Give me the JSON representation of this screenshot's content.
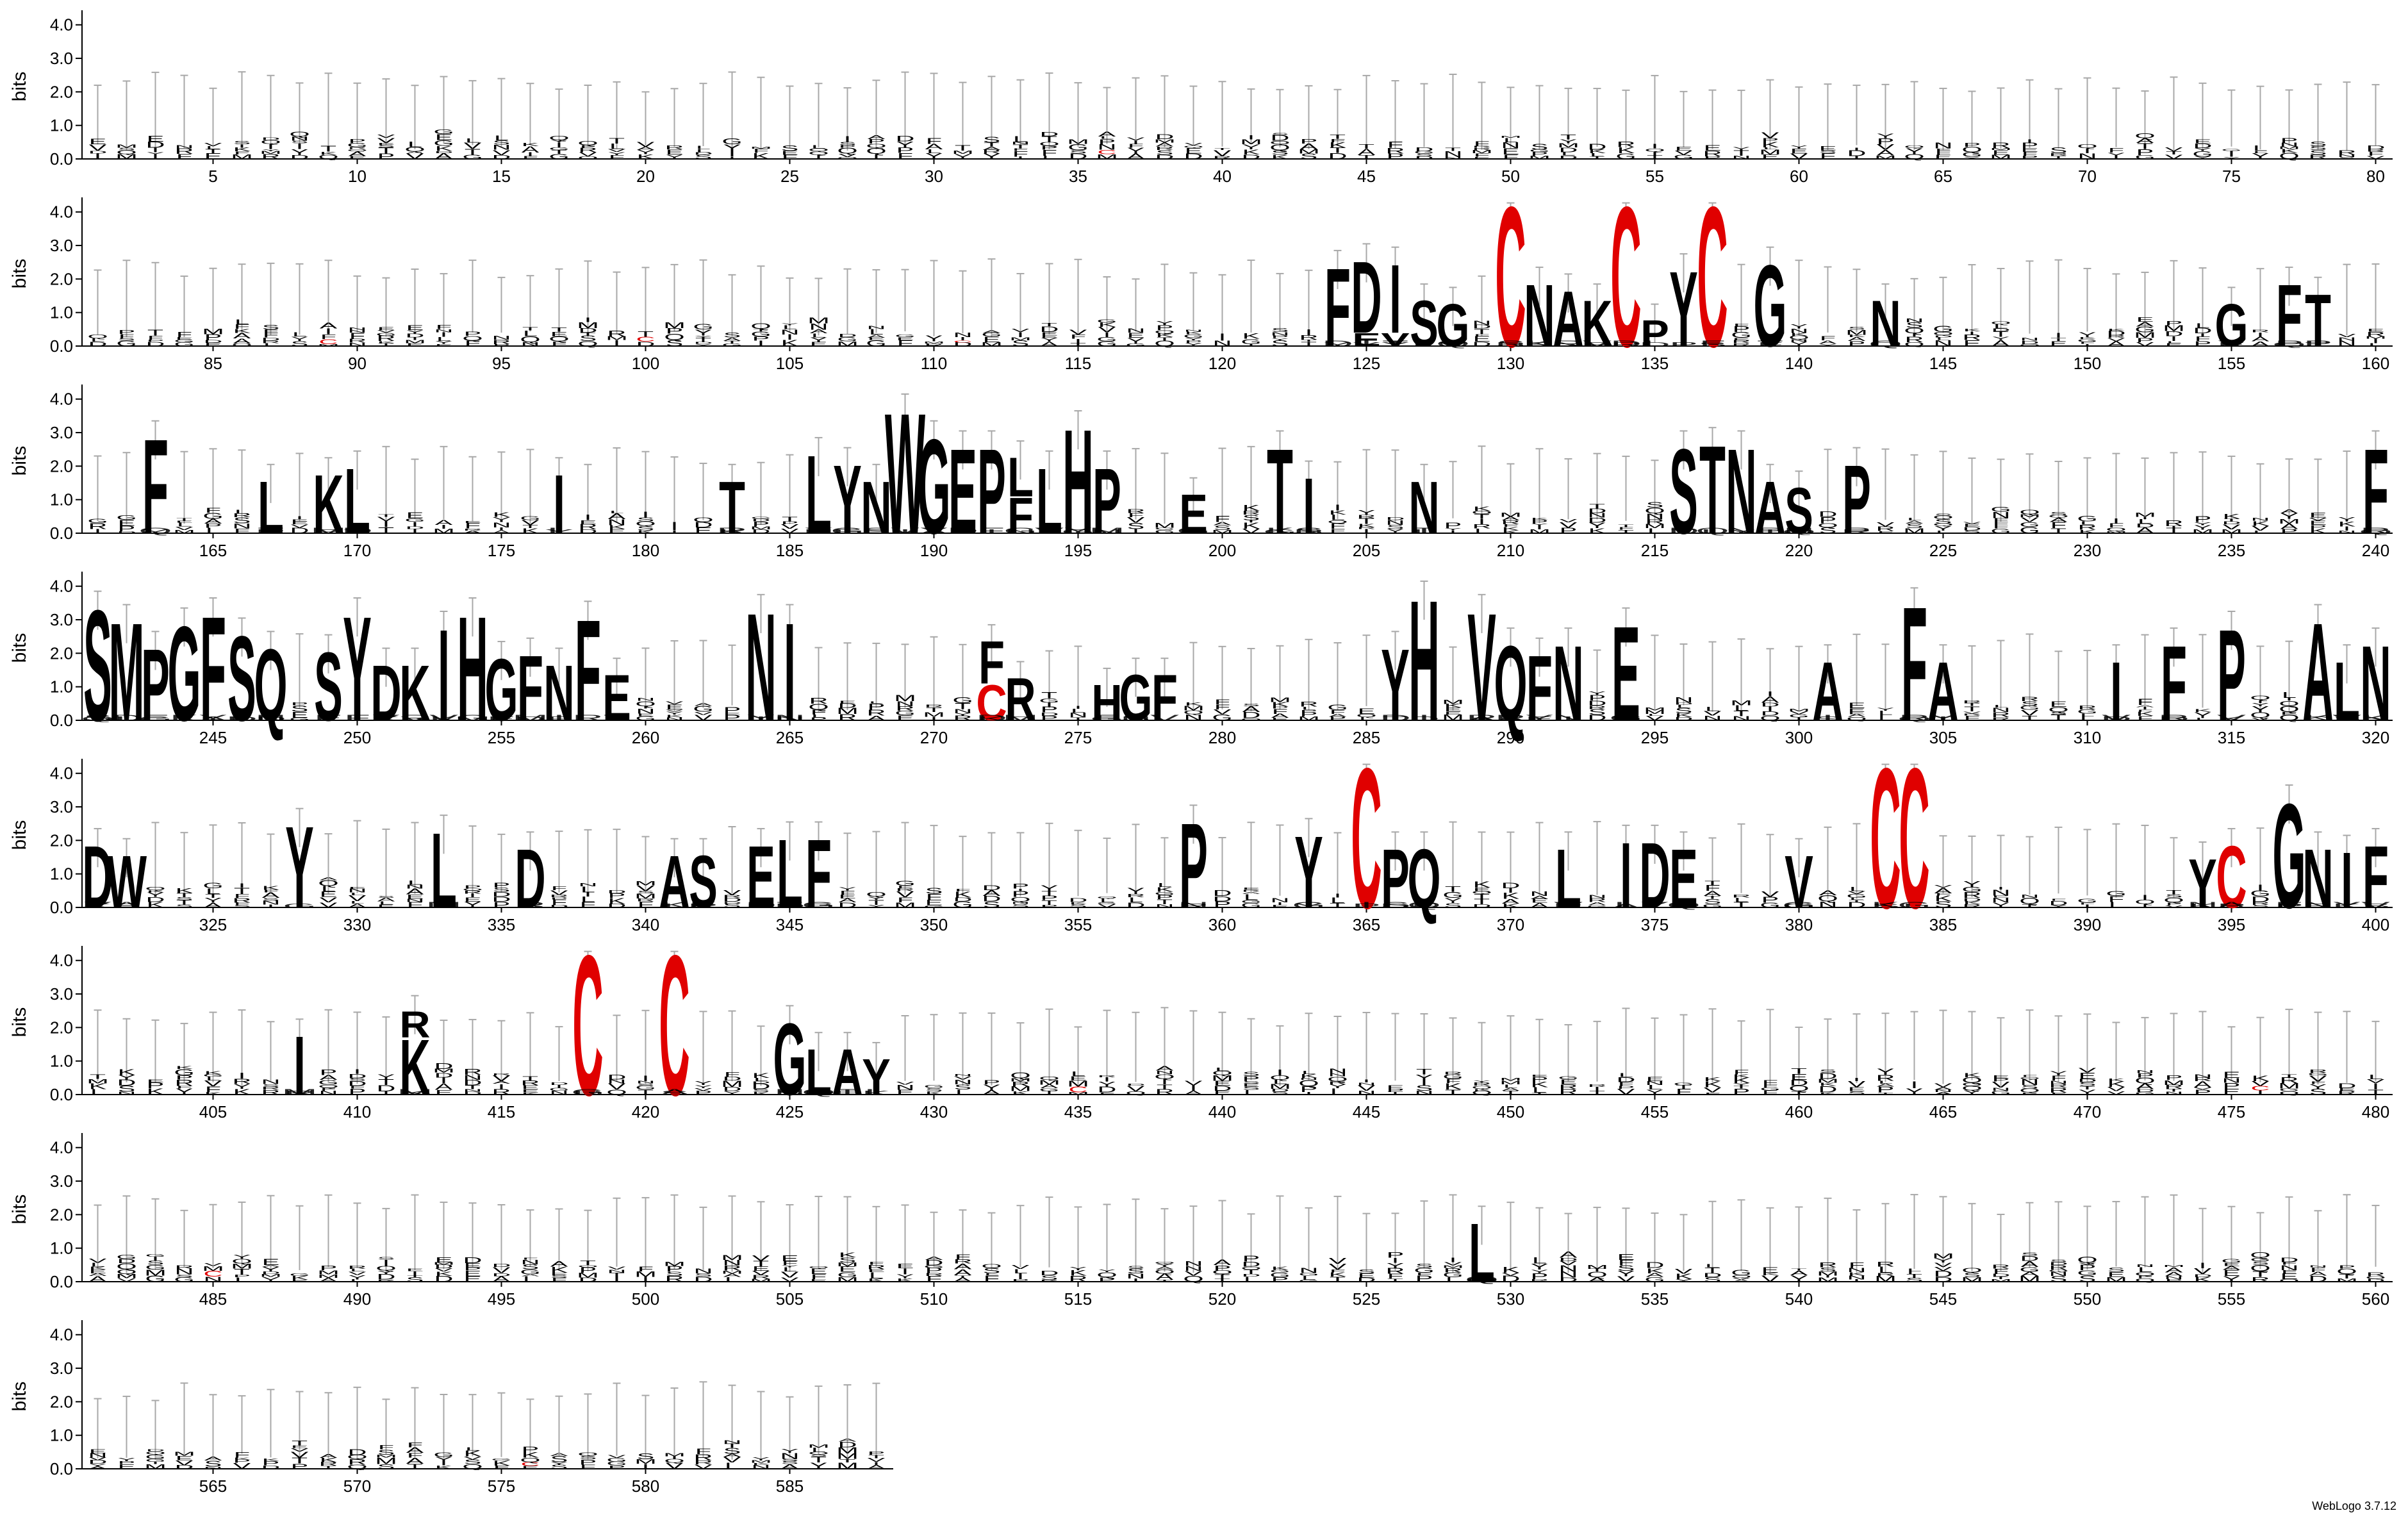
{
  "chart_data": {
    "type": "sequence-logo",
    "ylabel": "bits",
    "ylim": [
      0,
      4.32
    ],
    "yticks": [
      "0.0",
      "1.0",
      "2.0",
      "3.0",
      "4.0"
    ],
    "positions_per_row": 80,
    "total_positions": 588,
    "xtick_every": 5,
    "credit": "WebLogo 3.7.12",
    "colors": {
      "default": "#000000",
      "C": "#e00000",
      "errorbar": "#a8a8a8"
    },
    "logo_columns": [
      {
        "pos": 124,
        "stack": [
          [
            "F",
            2.4
          ]
        ]
      },
      {
        "pos": 125,
        "stack": [
          [
            "E",
            0.4
          ],
          [
            "D",
            2.2
          ]
        ]
      },
      {
        "pos": 126,
        "stack": [
          [
            "V",
            0.4
          ],
          [
            "I",
            2.1
          ]
        ]
      },
      {
        "pos": 127,
        "stack": [
          [
            "S",
            1.4
          ]
        ]
      },
      {
        "pos": 128,
        "stack": [
          [
            "G",
            1.3
          ]
        ]
      },
      {
        "pos": 130,
        "stack": [
          [
            "C",
            4.3
          ]
        ]
      },
      {
        "pos": 131,
        "stack": [
          [
            "N",
            1.9
          ]
        ]
      },
      {
        "pos": 132,
        "stack": [
          [
            "A",
            1.7
          ]
        ]
      },
      {
        "pos": 133,
        "stack": [
          [
            "K",
            1.4
          ]
        ]
      },
      {
        "pos": 134,
        "stack": [
          [
            "C",
            4.3
          ]
        ]
      },
      {
        "pos": 135,
        "stack": [
          [
            "P",
            0.8
          ]
        ]
      },
      {
        "pos": 136,
        "stack": [
          [
            "Y",
            2.3
          ]
        ]
      },
      {
        "pos": 137,
        "stack": [
          [
            "C",
            4.3
          ]
        ]
      },
      {
        "pos": 139,
        "stack": [
          [
            "G",
            2.5
          ]
        ]
      },
      {
        "pos": 143,
        "stack": [
          [
            "N",
            1.4
          ]
        ]
      },
      {
        "pos": 155,
        "stack": [
          [
            "G",
            1.3
          ]
        ]
      },
      {
        "pos": 157,
        "stack": [
          [
            "F",
            1.9
          ]
        ]
      },
      {
        "pos": 158,
        "stack": [
          [
            "T",
            1.6
          ]
        ]
      },
      {
        "pos": 163,
        "stack": [
          [
            "F",
            2.9
          ]
        ]
      },
      {
        "pos": 167,
        "stack": [
          [
            "L",
            1.6
          ]
        ]
      },
      {
        "pos": 169,
        "stack": [
          [
            "K",
            1.8
          ]
        ]
      },
      {
        "pos": 170,
        "stack": [
          [
            "L",
            2.0
          ]
        ]
      },
      {
        "pos": 177,
        "stack": [
          [
            "I",
            1.8
          ]
        ]
      },
      {
        "pos": 183,
        "stack": [
          [
            "T",
            1.6
          ]
        ]
      },
      {
        "pos": 186,
        "stack": [
          [
            "L",
            2.4
          ]
        ]
      },
      {
        "pos": 187,
        "stack": [
          [
            "Y",
            2.1
          ]
        ]
      },
      {
        "pos": 188,
        "stack": [
          [
            "N",
            1.6
          ]
        ]
      },
      {
        "pos": 189,
        "stack": [
          [
            "W",
            3.7
          ]
        ]
      },
      {
        "pos": 190,
        "stack": [
          [
            "G",
            2.9
          ]
        ]
      },
      {
        "pos": 191,
        "stack": [
          [
            "E",
            2.6
          ]
        ]
      },
      {
        "pos": 192,
        "stack": [
          [
            "P",
            2.6
          ]
        ]
      },
      {
        "pos": 193,
        "stack": [
          [
            "F",
            1.1
          ],
          [
            "L",
            1.2
          ]
        ]
      },
      {
        "pos": 194,
        "stack": [
          [
            "L",
            2.0
          ]
        ]
      },
      {
        "pos": 195,
        "stack": [
          [
            "H",
            3.2
          ]
        ]
      },
      {
        "pos": 196,
        "stack": [
          [
            "P",
            2.0
          ]
        ]
      },
      {
        "pos": 199,
        "stack": [
          [
            "E",
            1.2
          ]
        ]
      },
      {
        "pos": 202,
        "stack": [
          [
            "T",
            2.6
          ]
        ]
      },
      {
        "pos": 203,
        "stack": [
          [
            "I",
            1.7
          ]
        ]
      },
      {
        "pos": 207,
        "stack": [
          [
            "N",
            1.6
          ]
        ]
      },
      {
        "pos": 216,
        "stack": [
          [
            "S",
            2.6
          ]
        ]
      },
      {
        "pos": 217,
        "stack": [
          [
            "T",
            2.7
          ]
        ]
      },
      {
        "pos": 218,
        "stack": [
          [
            "N",
            2.6
          ]
        ]
      },
      {
        "pos": 219,
        "stack": [
          [
            "A",
            1.6
          ]
        ]
      },
      {
        "pos": 220,
        "stack": [
          [
            "S",
            1.4
          ]
        ]
      },
      {
        "pos": 222,
        "stack": [
          [
            "P",
            2.1
          ]
        ]
      },
      {
        "pos": 240,
        "stack": [
          [
            "F",
            2.6
          ]
        ]
      },
      {
        "pos": 241,
        "stack": [
          [
            "S",
            3.4
          ]
        ]
      },
      {
        "pos": 242,
        "stack": [
          [
            "M",
            3.0
          ]
        ]
      },
      {
        "pos": 243,
        "stack": [
          [
            "P",
            2.2
          ]
        ]
      },
      {
        "pos": 244,
        "stack": [
          [
            "G",
            2.9
          ]
        ]
      },
      {
        "pos": 245,
        "stack": [
          [
            "F",
            3.2
          ]
        ]
      },
      {
        "pos": 246,
        "stack": [
          [
            "S",
            2.6
          ]
        ]
      },
      {
        "pos": 247,
        "stack": [
          [
            "Q",
            2.2
          ]
        ]
      },
      {
        "pos": 249,
        "stack": [
          [
            "S",
            2.1
          ]
        ]
      },
      {
        "pos": 250,
        "stack": [
          [
            "Y",
            3.2
          ]
        ]
      },
      {
        "pos": 251,
        "stack": [
          [
            "D",
            1.7
          ]
        ]
      },
      {
        "pos": 252,
        "stack": [
          [
            "K",
            1.7
          ]
        ]
      },
      {
        "pos": 253,
        "stack": [
          [
            "I",
            2.8
          ]
        ]
      },
      {
        "pos": 254,
        "stack": [
          [
            "H",
            3.2
          ]
        ]
      },
      {
        "pos": 255,
        "stack": [
          [
            "G",
            1.9
          ]
        ]
      },
      {
        "pos": 256,
        "stack": [
          [
            "F",
            2.0
          ]
        ]
      },
      {
        "pos": 257,
        "stack": [
          [
            "N",
            1.7
          ]
        ]
      },
      {
        "pos": 258,
        "stack": [
          [
            "F",
            3.1
          ]
        ]
      },
      {
        "pos": 259,
        "stack": [
          [
            "E",
            1.4
          ]
        ]
      },
      {
        "pos": 264,
        "stack": [
          [
            "N",
            3.3
          ]
        ]
      },
      {
        "pos": 265,
        "stack": [
          [
            "I",
            3.0
          ]
        ]
      },
      {
        "pos": 272,
        "stack": [
          [
            "C",
            1.1
          ],
          [
            "F",
            1.3
          ]
        ]
      },
      {
        "pos": 273,
        "stack": [
          [
            "R",
            1.3
          ]
        ]
      },
      {
        "pos": 276,
        "stack": [
          [
            "H",
            1.1
          ]
        ]
      },
      {
        "pos": 277,
        "stack": [
          [
            "G",
            1.4
          ]
        ]
      },
      {
        "pos": 278,
        "stack": [
          [
            "F",
            1.4
          ]
        ]
      },
      {
        "pos": 286,
        "stack": [
          [
            "Y",
            2.2
          ]
        ]
      },
      {
        "pos": 287,
        "stack": [
          [
            "H",
            3.7
          ]
        ]
      },
      {
        "pos": 289,
        "stack": [
          [
            "V",
            3.3
          ]
        ]
      },
      {
        "pos": 290,
        "stack": [
          [
            "Q",
            2.3
          ]
        ]
      },
      {
        "pos": 291,
        "stack": [
          [
            "F",
            2.0
          ]
        ]
      },
      {
        "pos": 292,
        "stack": [
          [
            "N",
            2.3
          ]
        ]
      },
      {
        "pos": 294,
        "stack": [
          [
            "E",
            2.9
          ]
        ]
      },
      {
        "pos": 301,
        "stack": [
          [
            "A",
            1.8
          ]
        ]
      },
      {
        "pos": 304,
        "stack": [
          [
            "F",
            3.5
          ]
        ]
      },
      {
        "pos": 305,
        "stack": [
          [
            "A",
            1.8
          ]
        ]
      },
      {
        "pos": 311,
        "stack": [
          [
            "I",
            1.8
          ]
        ]
      },
      {
        "pos": 313,
        "stack": [
          [
            "F",
            2.3
          ]
        ]
      },
      {
        "pos": 315,
        "stack": [
          [
            "P",
            2.8
          ]
        ]
      },
      {
        "pos": 318,
        "stack": [
          [
            "A",
            3.0
          ]
        ]
      },
      {
        "pos": 319,
        "stack": [
          [
            "L",
            1.8
          ]
        ]
      },
      {
        "pos": 320,
        "stack": [
          [
            "N",
            2.3
          ]
        ]
      },
      {
        "pos": 321,
        "stack": [
          [
            "D",
            1.9
          ]
        ]
      },
      {
        "pos": 322,
        "stack": [
          [
            "W",
            1.6
          ]
        ]
      },
      {
        "pos": 328,
        "stack": [
          [
            "Y",
            2.5
          ]
        ]
      },
      {
        "pos": 333,
        "stack": [
          [
            "L",
            2.3
          ]
        ]
      },
      {
        "pos": 336,
        "stack": [
          [
            "D",
            1.8
          ]
        ]
      },
      {
        "pos": 341,
        "stack": [
          [
            "A",
            1.6
          ]
        ]
      },
      {
        "pos": 342,
        "stack": [
          [
            "S",
            1.6
          ]
        ]
      },
      {
        "pos": 344,
        "stack": [
          [
            "E",
            1.9
          ]
        ]
      },
      {
        "pos": 345,
        "stack": [
          [
            "L",
            2.1
          ]
        ]
      },
      {
        "pos": 346,
        "stack": [
          [
            "F",
            2.1
          ]
        ]
      },
      {
        "pos": 359,
        "stack": [
          [
            "P",
            2.6
          ]
        ]
      },
      {
        "pos": 363,
        "stack": [
          [
            "Y",
            2.2
          ]
        ]
      },
      {
        "pos": 365,
        "stack": [
          [
            "C",
            4.3
          ]
        ]
      },
      {
        "pos": 366,
        "stack": [
          [
            "P",
            1.8
          ]
        ]
      },
      {
        "pos": 367,
        "stack": [
          [
            "Q",
            1.8
          ]
        ]
      },
      {
        "pos": 372,
        "stack": [
          [
            "L",
            1.8
          ]
        ]
      },
      {
        "pos": 374,
        "stack": [
          [
            "I",
            2.0
          ]
        ]
      },
      {
        "pos": 375,
        "stack": [
          [
            "D",
            2.0
          ]
        ]
      },
      {
        "pos": 376,
        "stack": [
          [
            "E",
            1.8
          ]
        ]
      },
      {
        "pos": 380,
        "stack": [
          [
            "V",
            1.6
          ]
        ]
      },
      {
        "pos": 383,
        "stack": [
          [
            "C",
            4.3
          ]
        ]
      },
      {
        "pos": 384,
        "stack": [
          [
            "C",
            4.3
          ]
        ]
      },
      {
        "pos": 394,
        "stack": [
          [
            "Y",
            1.5
          ]
        ]
      },
      {
        "pos": 395,
        "stack": [
          [
            "C",
            1.9
          ]
        ]
      },
      {
        "pos": 397,
        "stack": [
          [
            "G",
            3.2
          ]
        ]
      },
      {
        "pos": 398,
        "stack": [
          [
            "N",
            1.8
          ]
        ]
      },
      {
        "pos": 399,
        "stack": [
          [
            "I",
            1.7
          ]
        ]
      },
      {
        "pos": 400,
        "stack": [
          [
            "F",
            1.9
          ]
        ]
      },
      {
        "pos": 408,
        "stack": [
          [
            "I",
            1.8
          ]
        ]
      },
      {
        "pos": 412,
        "stack": [
          [
            "K",
            1.7
          ],
          [
            "R",
            0.8
          ]
        ]
      },
      {
        "pos": 418,
        "stack": [
          [
            "C",
            4.3
          ]
        ]
      },
      {
        "pos": 421,
        "stack": [
          [
            "C",
            4.3
          ]
        ]
      },
      {
        "pos": 425,
        "stack": [
          [
            "G",
            2.2
          ]
        ]
      },
      {
        "pos": 426,
        "stack": [
          [
            "L",
            1.4
          ]
        ]
      },
      {
        "pos": 427,
        "stack": [
          [
            "A",
            1.4
          ]
        ]
      },
      {
        "pos": 428,
        "stack": [
          [
            "Y",
            1.1
          ]
        ]
      },
      {
        "pos": 529,
        "stack": [
          [
            "L",
            1.8
          ]
        ]
      }
    ],
    "pixel_columns": [
      {
        "pos": 36,
        "color": "#e00000"
      },
      {
        "pos": 89,
        "color": "#e00000"
      },
      {
        "pos": 100,
        "color": "#e00000"
      },
      {
        "pos": 111,
        "color": "#e00000"
      },
      {
        "pos": 435,
        "color": "#e00000"
      },
      {
        "pos": 476,
        "color": "#e00000"
      },
      {
        "pos": 485,
        "color": "#e00000"
      },
      {
        "pos": 576,
        "color": "#e00000"
      }
    ]
  }
}
